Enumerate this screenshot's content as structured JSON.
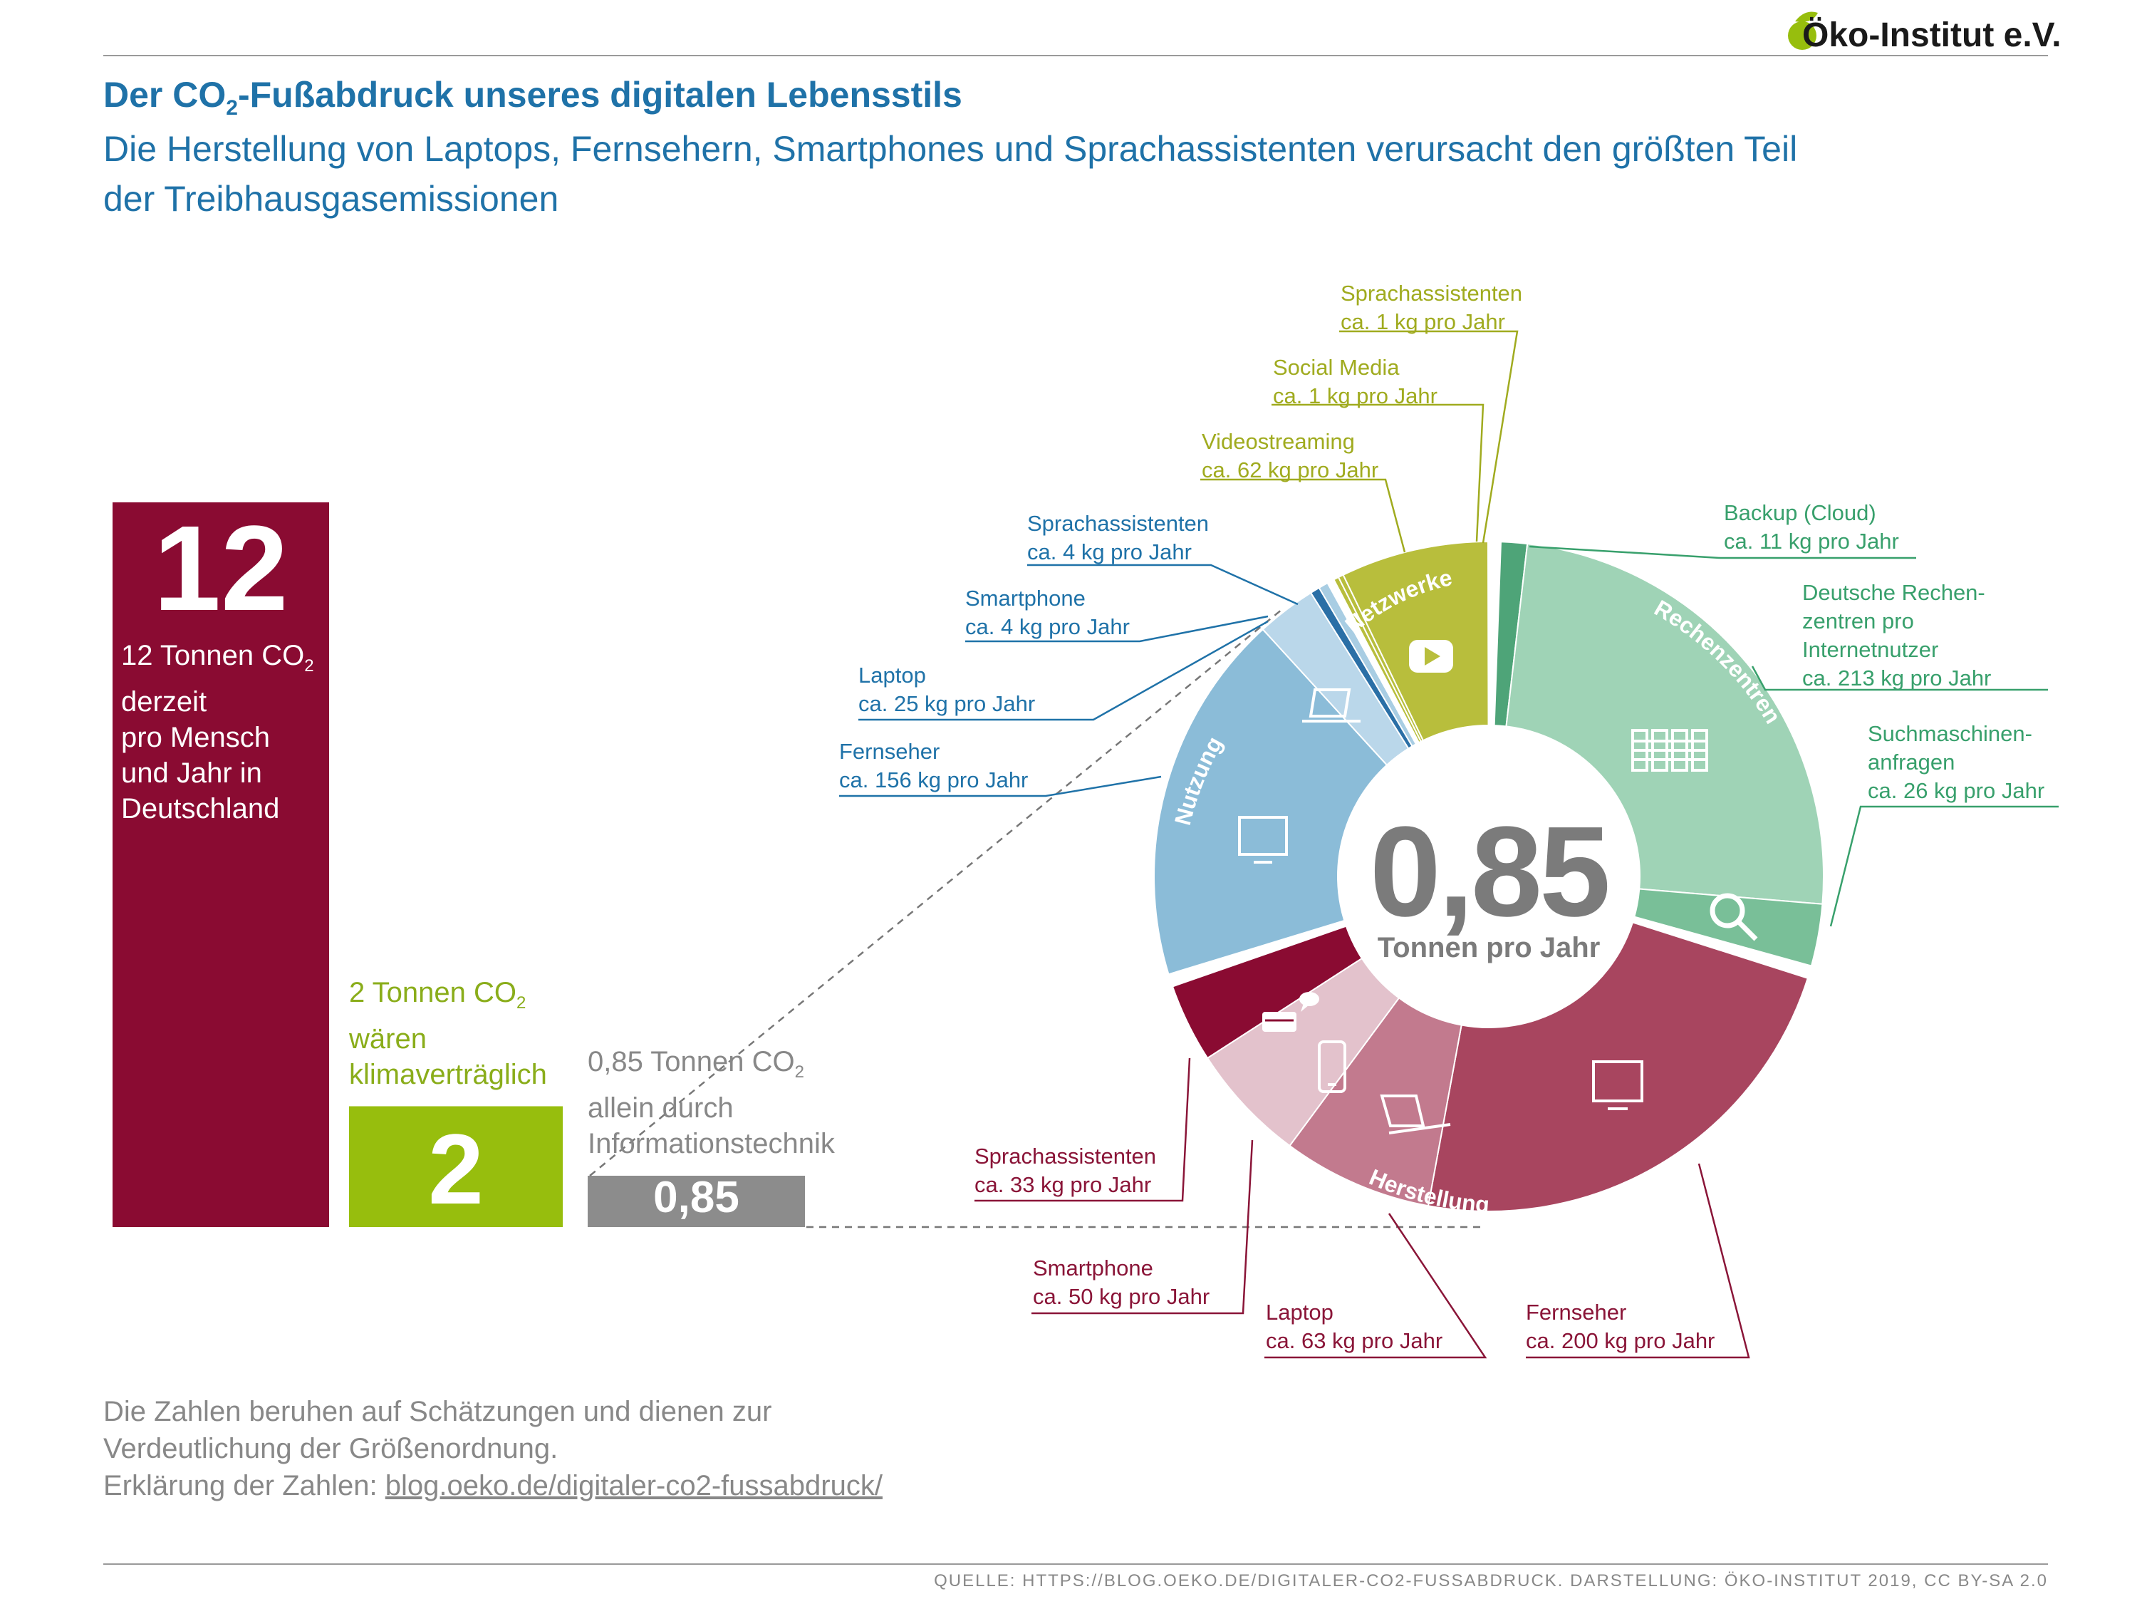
{
  "logo": "Öko-Institut e.V.",
  "title_pre": "Der CO",
  "title_sub": "2",
  "title_post": "-Fußabdruck unseres digitalen Lebensstils",
  "subtitle": "Die Herstellung von Laptops, Fernsehern, Smartphones und Sprachassistenten verursacht den größten Teil der Treibhausgasemissionen",
  "bars": {
    "big": {
      "value_label": "12",
      "line1": "12 Tonnen CO",
      "line1_sub": "2",
      "line2": "derzeit",
      "line3": "pro Mensch",
      "line4": "und Jahr in",
      "line5": "Deutschland",
      "color": "#8a0b32"
    },
    "climate": {
      "value_label": "2",
      "line1": "2 Tonnen CO",
      "line1_sub": "2",
      "line2": "wären",
      "line3": "klimaverträglich",
      "color": "#97be0d"
    },
    "it": {
      "value_label": "0,85",
      "line1": "0,85 Tonnen CO",
      "line1_sub": "2",
      "line2": "allein durch",
      "line3": "Informationstechnik",
      "color": "#8c8c8c"
    }
  },
  "chart_data": [
    {
      "type": "bar",
      "categories": [
        "12 Tonnen CO2 derzeit pro Mensch und Jahr in Deutschland",
        "2 Tonnen CO2 wären klimaverträglich",
        "0,85 Tonnen CO2 allein durch Informationstechnik"
      ],
      "values": [
        12,
        2,
        0.85
      ],
      "unit": "Tonnen CO2"
    },
    {
      "type": "pie",
      "center_value": "0,85",
      "center_unit": "Tonnen pro Jahr",
      "groups": [
        {
          "name": "Netzwerke",
          "color": "#b8be3c"
        },
        {
          "name": "Rechenzentren",
          "color": "#8fcca8"
        },
        {
          "name": "Herstellung",
          "color": "#a8455f"
        },
        {
          "name": "Nutzung",
          "color": "#8bbcd8"
        }
      ],
      "slices": [
        {
          "group": "Netzwerke",
          "name": "Sprachassistenten",
          "label": "ca. 1 kg pro Jahr",
          "value": 1,
          "color": "#b8be3c"
        },
        {
          "group": "Netzwerke",
          "name": "Social Media",
          "label": "ca. 1 kg pro Jahr",
          "value": 1,
          "color": "#b8be3c"
        },
        {
          "group": "Netzwerke",
          "name": "Videostreaming",
          "label": "ca. 62 kg pro Jahr",
          "value": 62,
          "color": "#b8be3c"
        },
        {
          "group": "Rechenzentren",
          "name": "Backup (Cloud)",
          "label": "ca. 11 kg pro Jahr",
          "value": 11,
          "color": "#4ea478"
        },
        {
          "group": "Rechenzentren",
          "name": "Deutsche Rechenzentren pro Internetnutzer",
          "label": "ca. 213 kg pro Jahr",
          "value": 213,
          "color": "#9fd3b6"
        },
        {
          "group": "Rechenzentren",
          "name": "Suchmaschinenanfragen",
          "label": "ca. 26 kg pro Jahr",
          "value": 26,
          "color": "#79bf98"
        },
        {
          "group": "Herstellung",
          "name": "Fernseher",
          "label": "ca. 200 kg pro Jahr",
          "value": 200,
          "color": "#a8455f"
        },
        {
          "group": "Herstellung",
          "name": "Laptop",
          "label": "ca. 63 kg pro Jahr",
          "value": 63,
          "color": "#c27a8e"
        },
        {
          "group": "Herstellung",
          "name": "Smartphone",
          "label": "ca. 50 kg pro Jahr",
          "value": 50,
          "color": "#e3c2cc"
        },
        {
          "group": "Herstellung",
          "name": "Sprachassistenten",
          "label": "ca. 33 kg pro Jahr",
          "value": 33,
          "color": "#8a0b32"
        },
        {
          "group": "Nutzung",
          "name": "Fernseher",
          "label": "ca. 156 kg pro Jahr",
          "value": 156,
          "color": "#8bbcd8"
        },
        {
          "group": "Nutzung",
          "name": "Laptop",
          "label": "ca. 25 kg pro Jahr",
          "value": 25,
          "color": "#bad7ea"
        },
        {
          "group": "Nutzung",
          "name": "Smartphone",
          "label": "ca. 4 kg pro Jahr",
          "value": 4,
          "color": "#2a6fa6"
        },
        {
          "group": "Nutzung",
          "name": "Sprachassistenten",
          "label": "ca. 4 kg pro Jahr",
          "value": 4,
          "color": "#a8cde3"
        }
      ]
    }
  ],
  "pie_labels": {
    "net_speech": [
      "Sprachassistenten",
      "ca. 1 kg pro Jahr"
    ],
    "net_social": [
      "Social Media",
      "ca. 1 kg pro Jahr"
    ],
    "net_video": [
      "Videostreaming",
      "ca. 62 kg pro Jahr"
    ],
    "dc_backup": [
      "Backup (Cloud)",
      "ca. 11 kg pro Jahr"
    ],
    "dc_german": [
      "Deutsche Rechen-",
      "zentren pro",
      "Internetnutzer",
      "ca. 213 kg pro Jahr"
    ],
    "dc_search": [
      "Suchmaschinen-",
      "anfragen",
      "ca. 26 kg pro Jahr"
    ],
    "use_speech": [
      "Sprachassistenten",
      "ca. 4 kg pro Jahr"
    ],
    "use_phone": [
      "Smartphone",
      "ca. 4 kg pro Jahr"
    ],
    "use_laptop": [
      "Laptop",
      "ca. 25 kg pro Jahr"
    ],
    "use_tv": [
      "Fernseher",
      "ca. 156 kg pro Jahr"
    ],
    "mfg_speech": [
      "Sprachassistenten",
      "ca. 33 kg pro Jahr"
    ],
    "mfg_phone": [
      "Smartphone",
      "ca. 50 kg pro Jahr"
    ],
    "mfg_laptop": [
      "Laptop",
      "ca. 63 kg pro Jahr"
    ],
    "mfg_tv": [
      "Fernseher",
      "ca. 200 kg pro Jahr"
    ]
  },
  "note": {
    "line1": "Die Zahlen beruhen auf Schätzungen und dienen zur",
    "line2": "Verdeutlichung der Größenordnung.",
    "line3_pre": "Erklärung der Zahlen: ",
    "link": "blog.oeko.de/digitaler-co2-fussabdruck/"
  },
  "source": "QUELLE: HTTPS://BLOG.OEKO.DE/DIGITALER-CO2-FUSSABDRUCK. DARSTELLUNG: ÖKO-INSTITUT 2019, CC BY-SA 2.0"
}
